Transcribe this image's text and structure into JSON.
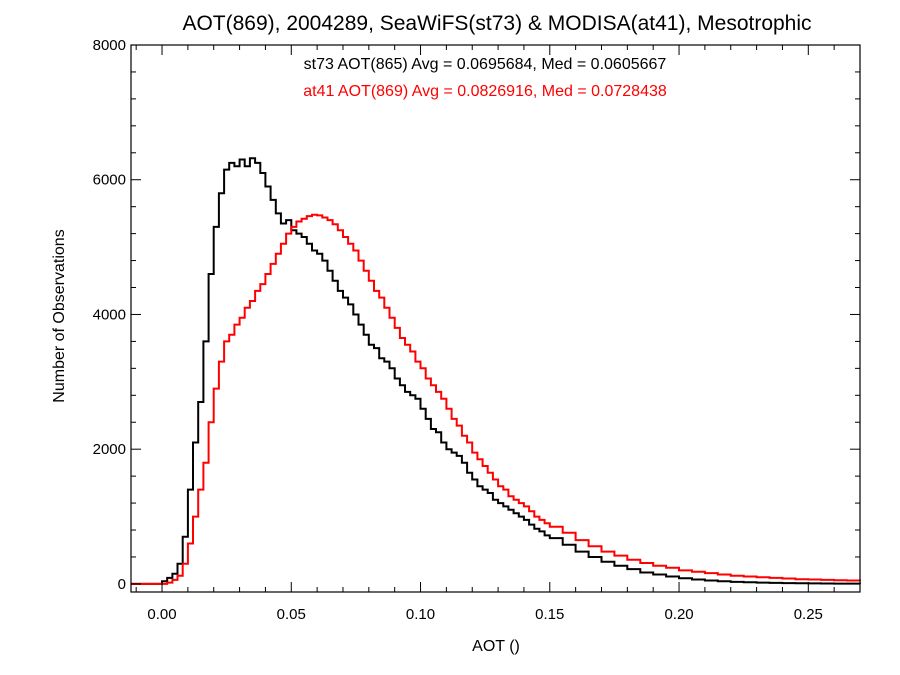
{
  "chart_data": {
    "type": "line",
    "title": "AOT(869), 2004289, SeaWiFS(st73) & MODISA(at41), Mesotrophic",
    "xlabel": "AOT ()",
    "ylabel": "Number of Observations",
    "xlim": [
      -0.012,
      0.27
    ],
    "ylim": [
      -120,
      8000
    ],
    "x_ticks": [
      0.0,
      0.05,
      0.1,
      0.15,
      0.2,
      0.25
    ],
    "x_tick_labels": [
      "0.00",
      "0.05",
      "0.10",
      "0.15",
      "0.20",
      "0.25"
    ],
    "y_ticks": [
      0,
      2000,
      4000,
      6000,
      8000
    ],
    "y_tick_labels": [
      "0",
      "2000",
      "4000",
      "6000",
      "8000"
    ],
    "grid": false,
    "annotations": [
      {
        "text": "st73 AOT(865) Avg = 0.0695684, Med = 0.0605667",
        "color": "#000000"
      },
      {
        "text": "at41 AOT(869) Avg = 0.0826916, Med = 0.0728438",
        "color": "#ff0000"
      }
    ],
    "series": [
      {
        "color": "#000000",
        "x": [
          -0.012,
          -0.005,
          0.0,
          0.002,
          0.004,
          0.006,
          0.008,
          0.01,
          0.012,
          0.014,
          0.016,
          0.018,
          0.02,
          0.022,
          0.024,
          0.026,
          0.028,
          0.03,
          0.032,
          0.034,
          0.036,
          0.038,
          0.04,
          0.042,
          0.044,
          0.046,
          0.048,
          0.05,
          0.052,
          0.054,
          0.056,
          0.058,
          0.06,
          0.062,
          0.064,
          0.066,
          0.068,
          0.07,
          0.072,
          0.074,
          0.076,
          0.078,
          0.08,
          0.082,
          0.084,
          0.086,
          0.088,
          0.09,
          0.092,
          0.094,
          0.096,
          0.098,
          0.1,
          0.102,
          0.104,
          0.106,
          0.108,
          0.11,
          0.112,
          0.114,
          0.116,
          0.118,
          0.12,
          0.122,
          0.124,
          0.126,
          0.128,
          0.13,
          0.132,
          0.134,
          0.136,
          0.138,
          0.14,
          0.142,
          0.144,
          0.146,
          0.148,
          0.15,
          0.155,
          0.16,
          0.165,
          0.17,
          0.175,
          0.18,
          0.185,
          0.19,
          0.195,
          0.2,
          0.205,
          0.21,
          0.215,
          0.22,
          0.225,
          0.23,
          0.235,
          0.24,
          0.245,
          0.25,
          0.255,
          0.26,
          0.265,
          0.27
        ],
        "y": [
          0,
          0,
          40,
          90,
          150,
          300,
          700,
          1400,
          2100,
          2700,
          3600,
          4600,
          5300,
          5800,
          6150,
          6250,
          6200,
          6300,
          6200,
          6320,
          6250,
          6100,
          5900,
          5700,
          5500,
          5350,
          5400,
          5250,
          5200,
          5150,
          5050,
          4950,
          4900,
          4800,
          4650,
          4500,
          4350,
          4250,
          4150,
          4000,
          3850,
          3700,
          3550,
          3500,
          3350,
          3300,
          3200,
          3050,
          2950,
          2850,
          2800,
          2750,
          2600,
          2450,
          2300,
          2250,
          2100,
          2000,
          1950,
          1900,
          1800,
          1650,
          1550,
          1450,
          1400,
          1350,
          1250,
          1200,
          1150,
          1100,
          1050,
          1000,
          950,
          880,
          820,
          780,
          720,
          680,
          580,
          480,
          400,
          330,
          270,
          220,
          170,
          140,
          110,
          85,
          65,
          50,
          40,
          30,
          25,
          20,
          15,
          12,
          10,
          8,
          6,
          5,
          4,
          3
        ]
      },
      {
        "color": "#ff0000",
        "x": [
          -0.012,
          -0.005,
          0.0,
          0.002,
          0.004,
          0.006,
          0.008,
          0.01,
          0.012,
          0.014,
          0.016,
          0.018,
          0.02,
          0.022,
          0.024,
          0.026,
          0.028,
          0.03,
          0.032,
          0.034,
          0.036,
          0.038,
          0.04,
          0.042,
          0.044,
          0.046,
          0.048,
          0.05,
          0.052,
          0.054,
          0.056,
          0.058,
          0.06,
          0.062,
          0.064,
          0.066,
          0.068,
          0.07,
          0.072,
          0.074,
          0.076,
          0.078,
          0.08,
          0.082,
          0.084,
          0.086,
          0.088,
          0.09,
          0.092,
          0.094,
          0.096,
          0.098,
          0.1,
          0.102,
          0.104,
          0.106,
          0.108,
          0.11,
          0.112,
          0.114,
          0.116,
          0.118,
          0.12,
          0.122,
          0.124,
          0.126,
          0.128,
          0.13,
          0.132,
          0.134,
          0.136,
          0.138,
          0.14,
          0.142,
          0.144,
          0.146,
          0.148,
          0.15,
          0.155,
          0.16,
          0.165,
          0.17,
          0.175,
          0.18,
          0.185,
          0.19,
          0.195,
          0.2,
          0.205,
          0.21,
          0.215,
          0.22,
          0.225,
          0.23,
          0.235,
          0.24,
          0.245,
          0.25,
          0.255,
          0.26,
          0.265,
          0.27
        ],
        "y": [
          0,
          0,
          0,
          20,
          60,
          120,
          300,
          600,
          1000,
          1400,
          1800,
          2400,
          2900,
          3300,
          3600,
          3700,
          3850,
          3950,
          4100,
          4200,
          4350,
          4450,
          4600,
          4750,
          4900,
          5050,
          5200,
          5300,
          5380,
          5420,
          5460,
          5480,
          5470,
          5440,
          5400,
          5340,
          5250,
          5150,
          5050,
          4950,
          4800,
          4650,
          4500,
          4350,
          4250,
          4100,
          3950,
          3800,
          3650,
          3550,
          3450,
          3300,
          3200,
          3050,
          2950,
          2850,
          2750,
          2600,
          2450,
          2350,
          2200,
          2100,
          1950,
          1850,
          1750,
          1650,
          1550,
          1450,
          1400,
          1300,
          1250,
          1200,
          1150,
          1080,
          1000,
          950,
          900,
          850,
          760,
          650,
          560,
          480,
          420,
          360,
          310,
          270,
          240,
          200,
          180,
          160,
          140,
          120,
          110,
          100,
          90,
          80,
          70,
          65,
          60,
          55,
          50,
          45
        ]
      }
    ]
  }
}
